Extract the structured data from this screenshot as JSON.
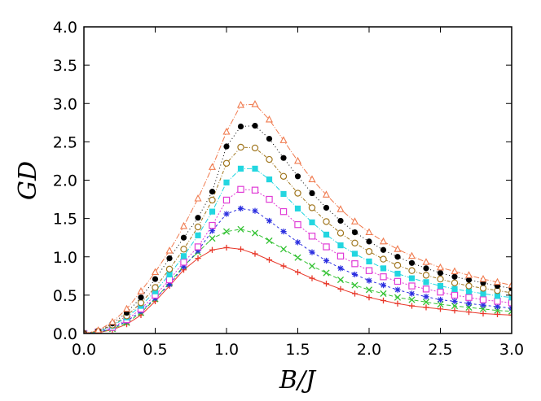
{
  "chart_data": {
    "type": "line",
    "title": "",
    "xlabel": "B/J",
    "ylabel": "GD",
    "xlim": [
      0.0,
      3.0
    ],
    "ylim": [
      0.0,
      4.0
    ],
    "grid": false,
    "legend": "none",
    "x_ticks": [
      "0.0",
      "0.5",
      "1.0",
      "1.5",
      "2.0",
      "2.5",
      "3.0"
    ],
    "y_ticks": [
      "0.0",
      "0.5",
      "1.0",
      "1.5",
      "2.0",
      "2.5",
      "3.0",
      "3.5",
      "4.0"
    ],
    "x": [
      0.0,
      0.1,
      0.2,
      0.3,
      0.4,
      0.5,
      0.6,
      0.7,
      0.8,
      0.9,
      1.0,
      1.1,
      1.2,
      1.3,
      1.4,
      1.5,
      1.6,
      1.7,
      1.8,
      1.9,
      2.0,
      2.1,
      2.2,
      2.3,
      2.4,
      2.5,
      2.6,
      2.7,
      2.8,
      2.9,
      3.0
    ],
    "series": [
      {
        "color": "#e8382a",
        "marker": "plus",
        "dash": "",
        "values": [
          0.0,
          0.01,
          0.05,
          0.12,
          0.24,
          0.42,
          0.62,
          0.83,
          0.98,
          1.09,
          1.12,
          1.1,
          1.04,
          0.96,
          0.88,
          0.8,
          0.72,
          0.65,
          0.58,
          0.52,
          0.47,
          0.43,
          0.39,
          0.36,
          0.34,
          0.32,
          0.3,
          0.28,
          0.26,
          0.25,
          0.24
        ]
      },
      {
        "color": "#33c233",
        "marker": "x",
        "dash": "5,3",
        "values": [
          0.0,
          0.01,
          0.06,
          0.14,
          0.27,
          0.45,
          0.66,
          0.88,
          1.06,
          1.24,
          1.33,
          1.36,
          1.31,
          1.21,
          1.1,
          0.99,
          0.88,
          0.79,
          0.7,
          0.63,
          0.57,
          0.52,
          0.47,
          0.44,
          0.41,
          0.38,
          0.36,
          0.34,
          0.32,
          0.3,
          0.29
        ]
      },
      {
        "color": "#2b2ee0",
        "marker": "star",
        "dash": "3,3",
        "values": [
          0.0,
          0.01,
          0.07,
          0.16,
          0.29,
          0.46,
          0.64,
          0.87,
          1.08,
          1.34,
          1.56,
          1.63,
          1.6,
          1.47,
          1.33,
          1.19,
          1.06,
          0.95,
          0.85,
          0.77,
          0.69,
          0.63,
          0.57,
          0.52,
          0.48,
          0.44,
          0.42,
          0.39,
          0.37,
          0.35,
          0.33
        ]
      },
      {
        "color": "#e03cd6",
        "marker": "square-open",
        "dash": "2,2",
        "values": [
          0.0,
          0.02,
          0.08,
          0.18,
          0.32,
          0.5,
          0.7,
          0.93,
          1.13,
          1.41,
          1.74,
          1.88,
          1.87,
          1.75,
          1.59,
          1.42,
          1.27,
          1.13,
          1.01,
          0.91,
          0.82,
          0.74,
          0.68,
          0.62,
          0.58,
          0.54,
          0.5,
          0.47,
          0.44,
          0.42,
          0.4
        ]
      },
      {
        "color": "#22d6e0",
        "marker": "square-filled",
        "dash": "6,2,1,2",
        "values": [
          0.0,
          0.02,
          0.1,
          0.21,
          0.36,
          0.55,
          0.77,
          1.01,
          1.28,
          1.59,
          1.97,
          2.15,
          2.15,
          2.01,
          1.82,
          1.63,
          1.45,
          1.29,
          1.15,
          1.04,
          0.94,
          0.85,
          0.78,
          0.72,
          0.67,
          0.62,
          0.58,
          0.55,
          0.52,
          0.49,
          0.47
        ]
      },
      {
        "color": "#a0761e",
        "marker": "circle-open",
        "dash": "4,2,1,2",
        "values": [
          0.0,
          0.03,
          0.11,
          0.23,
          0.4,
          0.6,
          0.84,
          1.1,
          1.39,
          1.74,
          2.22,
          2.43,
          2.42,
          2.27,
          2.05,
          1.83,
          1.64,
          1.46,
          1.31,
          1.18,
          1.07,
          0.97,
          0.89,
          0.82,
          0.76,
          0.71,
          0.66,
          0.62,
          0.59,
          0.56,
          0.53
        ]
      },
      {
        "color": "#000000",
        "marker": "circle-filled",
        "dash": "1,3",
        "values": [
          0.0,
          0.03,
          0.13,
          0.27,
          0.47,
          0.71,
          0.98,
          1.25,
          1.51,
          1.85,
          2.44,
          2.7,
          2.71,
          2.54,
          2.29,
          2.05,
          1.83,
          1.64,
          1.47,
          1.32,
          1.2,
          1.09,
          1.0,
          0.92,
          0.85,
          0.79,
          0.74,
          0.7,
          0.66,
          0.62,
          0.59
        ]
      },
      {
        "color": "#f07a4e",
        "marker": "triangle-open",
        "dash": "7,2,1,2",
        "values": [
          0.0,
          0.04,
          0.15,
          0.32,
          0.55,
          0.8,
          1.08,
          1.4,
          1.76,
          2.17,
          2.63,
          2.98,
          2.99,
          2.79,
          2.52,
          2.25,
          2.01,
          1.81,
          1.62,
          1.46,
          1.32,
          1.2,
          1.1,
          1.01,
          0.93,
          0.86,
          0.81,
          0.76,
          0.71,
          0.67,
          0.63
        ]
      }
    ]
  }
}
